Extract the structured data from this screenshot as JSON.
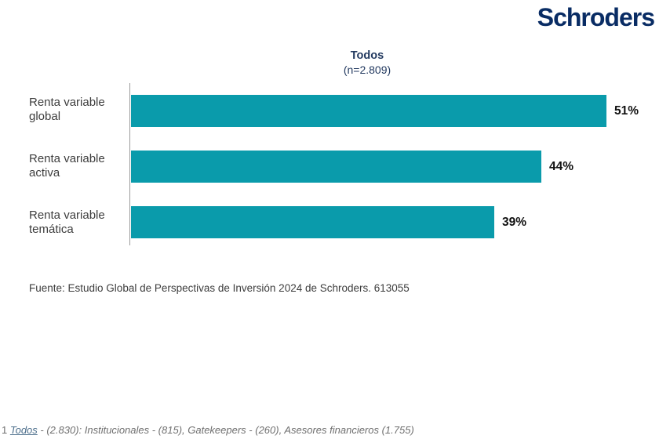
{
  "header": {
    "logo_text": "Schroders"
  },
  "colors": {
    "brand_navy": "#092C64",
    "bar_teal": "#0A9BAB",
    "title_navy": "#233A60"
  },
  "chart_data": {
    "type": "bar",
    "orientation": "horizontal",
    "title": "Todos",
    "subtitle": "(n=2.809)",
    "categories": [
      "Renta variable global",
      "Renta variable activa",
      "Renta variable temática"
    ],
    "values": [
      51,
      44,
      39
    ],
    "value_labels": [
      "51%",
      "44%",
      "39%"
    ],
    "xlim": [
      0,
      53.5
    ],
    "grid": false,
    "legend": false,
    "value_unit": "%"
  },
  "source_note": "Fuente: Estudio Global de Perspectivas de Inversión 2024 de Schroders. 613055",
  "footnote": {
    "prefix": "1 ",
    "link_text": "Todos",
    "rest": " - (2.830): Institucionales - (815), Gatekeepers - (260), Asesores financieros (1.755)"
  }
}
